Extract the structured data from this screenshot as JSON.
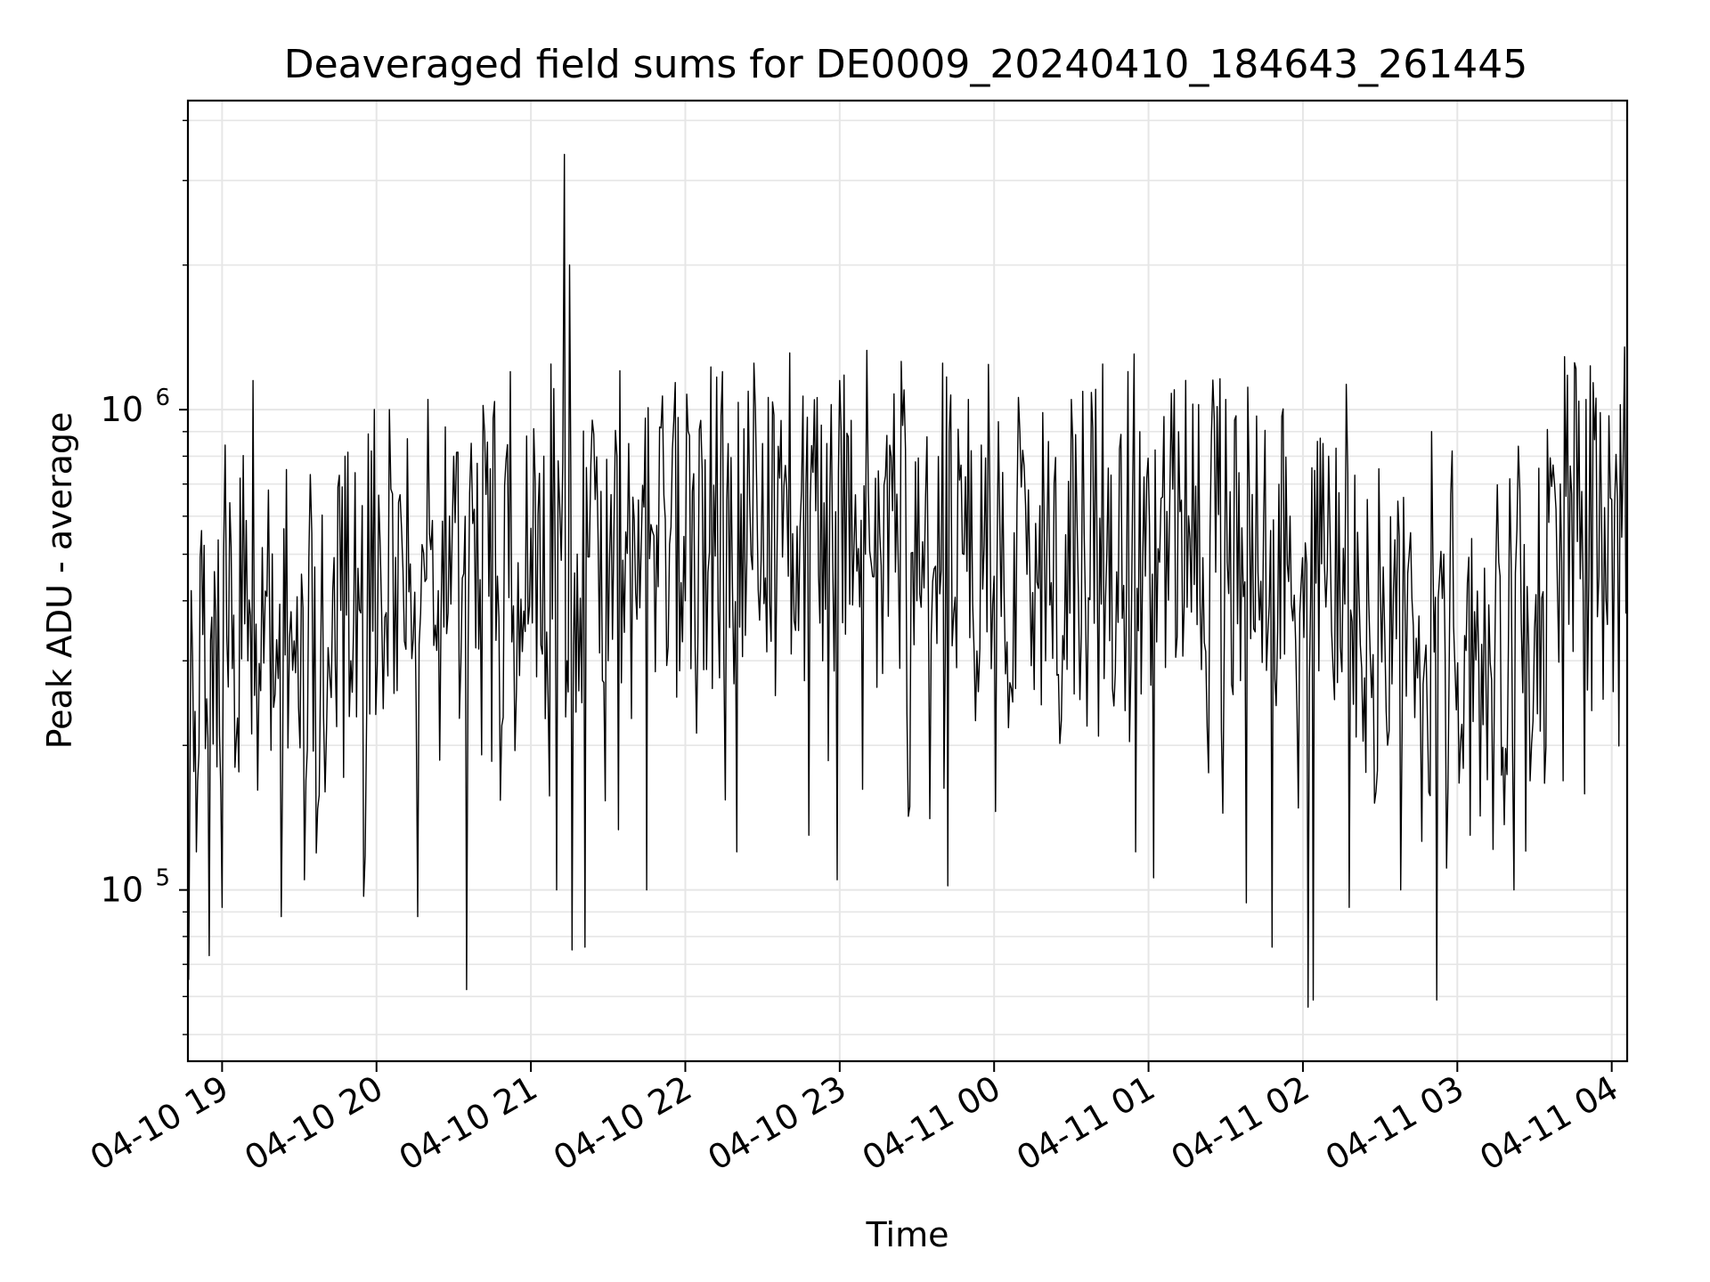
{
  "chart_data": {
    "type": "line",
    "title": "Deaveraged field sums for DE0009_20240410_184643_261445",
    "xlabel": "Time",
    "ylabel": "Peak ADU - average",
    "x_axis": {
      "type": "time",
      "range": [
        "2024-04-10 18:46:43",
        "2024-04-11 04:06:00"
      ],
      "ticks": [
        {
          "value": "2024-04-10 19:00",
          "label": "04-10 19"
        },
        {
          "value": "2024-04-10 20:00",
          "label": "04-10 20"
        },
        {
          "value": "2024-04-10 21:00",
          "label": "04-10 21"
        },
        {
          "value": "2024-04-10 22:00",
          "label": "04-10 22"
        },
        {
          "value": "2024-04-10 23:00",
          "label": "04-10 23"
        },
        {
          "value": "2024-04-11 00:00",
          "label": "04-11 00"
        },
        {
          "value": "2024-04-11 01:00",
          "label": "04-11 01"
        },
        {
          "value": "2024-04-11 02:00",
          "label": "04-11 02"
        },
        {
          "value": "2024-04-11 03:00",
          "label": "04-11 03"
        },
        {
          "value": "2024-04-11 04:00",
          "label": "04-11 04"
        }
      ]
    },
    "y_axis": {
      "scale": "log",
      "range": [
        44000,
        4400000
      ],
      "ticks": [
        {
          "value": 100000,
          "base": "10",
          "exp": "5"
        },
        {
          "value": 1000000,
          "base": "10",
          "exp": "6"
        }
      ]
    },
    "grid": true,
    "legend": "none",
    "series": [
      {
        "color": "#000000",
        "points": [
          [
            "2024-04-10 18:47",
            65000
          ],
          [
            "2024-04-10 18:48",
            420000
          ],
          [
            "2024-04-10 18:50",
            120000
          ],
          [
            "2024-04-10 18:52",
            560000
          ],
          [
            "2024-04-10 18:54",
            250000
          ],
          [
            "2024-04-10 18:55",
            73000
          ],
          [
            "2024-04-10 18:57",
            460000
          ],
          [
            "2024-04-10 18:59",
            210000
          ],
          [
            "2024-04-10 19:00",
            92000
          ],
          [
            "2024-04-10 19:03",
            640000
          ],
          [
            "2024-04-10 19:05",
            180000
          ],
          [
            "2024-04-10 19:07",
            720000
          ],
          [
            "2024-04-10 19:10",
            300000
          ],
          [
            "2024-04-10 19:12",
            1150000
          ],
          [
            "2024-04-10 19:15",
            260000
          ],
          [
            "2024-04-10 19:18",
            680000
          ],
          [
            "2024-04-10 19:20",
            240000
          ],
          [
            "2024-04-10 19:23",
            88000
          ],
          [
            "2024-04-10 19:25",
            750000
          ],
          [
            "2024-04-10 19:28",
            330000
          ],
          [
            "2024-04-10 19:32",
            105000
          ],
          [
            "2024-04-10 19:36",
            470000
          ],
          [
            "2024-04-10 19:40",
            160000
          ],
          [
            "2024-04-10 19:43",
            420000
          ],
          [
            "2024-04-10 19:45",
            690000
          ],
          [
            "2024-04-10 19:50",
            300000
          ],
          [
            "2024-04-10 19:55",
            97000
          ],
          [
            "2024-04-10 19:58",
            820000
          ],
          [
            "2024-04-10 20:02",
            380000
          ],
          [
            "2024-04-10 20:05",
            1000000
          ],
          [
            "2024-04-10 20:08",
            260000
          ],
          [
            "2024-04-10 20:12",
            870000
          ],
          [
            "2024-04-10 20:16",
            88000
          ],
          [
            "2024-04-10 20:20",
            1050000
          ],
          [
            "2024-04-10 20:24",
            420000
          ],
          [
            "2024-04-10 20:30",
            800000
          ],
          [
            "2024-04-10 20:35",
            62000
          ],
          [
            "2024-04-10 20:38",
            620000
          ],
          [
            "2024-04-10 20:42",
            900000
          ],
          [
            "2024-04-10 20:47",
            450000
          ],
          [
            "2024-04-10 20:52",
            1200000
          ],
          [
            "2024-04-10 20:55",
            480000
          ],
          [
            "2024-04-10 21:05",
            800000
          ],
          [
            "2024-04-10 21:10",
            100000
          ],
          [
            "2024-04-10 21:13",
            3400000
          ],
          [
            "2024-04-10 21:14",
            300000
          ],
          [
            "2024-04-10 21:15",
            2000000
          ],
          [
            "2024-04-10 21:16",
            75000
          ],
          [
            "2024-04-10 21:18",
            500000
          ],
          [
            "2024-04-10 21:21",
            76000
          ],
          [
            "2024-04-10 21:25",
            650000
          ],
          [
            "2024-04-10 21:30",
            300000
          ],
          [
            "2024-04-10 21:38",
            850000
          ],
          [
            "2024-04-10 21:45",
            100000
          ],
          [
            "2024-04-10 21:50",
            920000
          ],
          [
            "2024-04-10 22:00",
            400000
          ],
          [
            "2024-04-10 22:06",
            950000
          ],
          [
            "2024-04-10 22:15",
            300000
          ],
          [
            "2024-04-10 22:20",
            120000
          ],
          [
            "2024-04-10 22:30",
            850000
          ],
          [
            "2024-04-10 22:40",
            450000
          ],
          [
            "2024-04-10 22:48",
            130000
          ],
          [
            "2024-04-10 22:55",
            850000
          ],
          [
            "2024-04-10 22:59",
            105000
          ],
          [
            "2024-04-10 23:00",
            1150000
          ],
          [
            "2024-04-10 23:10",
            500000
          ],
          [
            "2024-04-10 23:20",
            800000
          ],
          [
            "2024-04-10 23:30",
            400000
          ],
          [
            "2024-04-10 23:40",
            1250000
          ],
          [
            "2024-04-10 23:42",
            102000
          ],
          [
            "2024-04-10 23:50",
            1050000
          ],
          [
            "2024-04-11 00:00",
            450000
          ],
          [
            "2024-04-11 00:10",
            900000
          ],
          [
            "2024-04-11 00:20",
            300000
          ],
          [
            "2024-04-11 00:30",
            1050000
          ],
          [
            "2024-04-11 00:40",
            500000
          ],
          [
            "2024-04-11 00:52",
            1200000
          ],
          [
            "2024-04-11 00:55",
            120000
          ],
          [
            "2024-04-11 01:02",
            106000
          ],
          [
            "2024-04-11 01:10",
            1100000
          ],
          [
            "2024-04-11 01:20",
            400000
          ],
          [
            "2024-04-11 01:30",
            1050000
          ],
          [
            "2024-04-11 01:38",
            94000
          ],
          [
            "2024-04-11 01:42",
            970000
          ],
          [
            "2024-04-11 01:48",
            76000
          ],
          [
            "2024-04-11 01:55",
            600000
          ],
          [
            "2024-04-11 02:02",
            57000
          ],
          [
            "2024-04-11 02:04",
            59000
          ],
          [
            "2024-04-11 02:10",
            800000
          ],
          [
            "2024-04-11 02:18",
            92000
          ],
          [
            "2024-04-11 02:25",
            650000
          ],
          [
            "2024-04-11 02:38",
            100000
          ],
          [
            "2024-04-11 02:50",
            900000
          ],
          [
            "2024-04-11 02:52",
            59000
          ],
          [
            "2024-04-11 02:58",
            820000
          ],
          [
            "2024-04-11 03:05",
            130000
          ],
          [
            "2024-04-11 03:15",
            480000
          ],
          [
            "2024-04-11 03:22",
            100000
          ],
          [
            "2024-04-11 03:30",
            350000
          ],
          [
            "2024-04-11 03:40",
            700000
          ],
          [
            "2024-04-11 03:50",
            1050000
          ],
          [
            "2024-04-11 03:55",
            450000
          ],
          [
            "2024-04-11 04:00",
            650000
          ],
          [
            "2024-04-11 04:05",
            1350000
          ],
          [
            "2024-04-11 04:06",
            440000
          ]
        ]
      }
    ]
  }
}
